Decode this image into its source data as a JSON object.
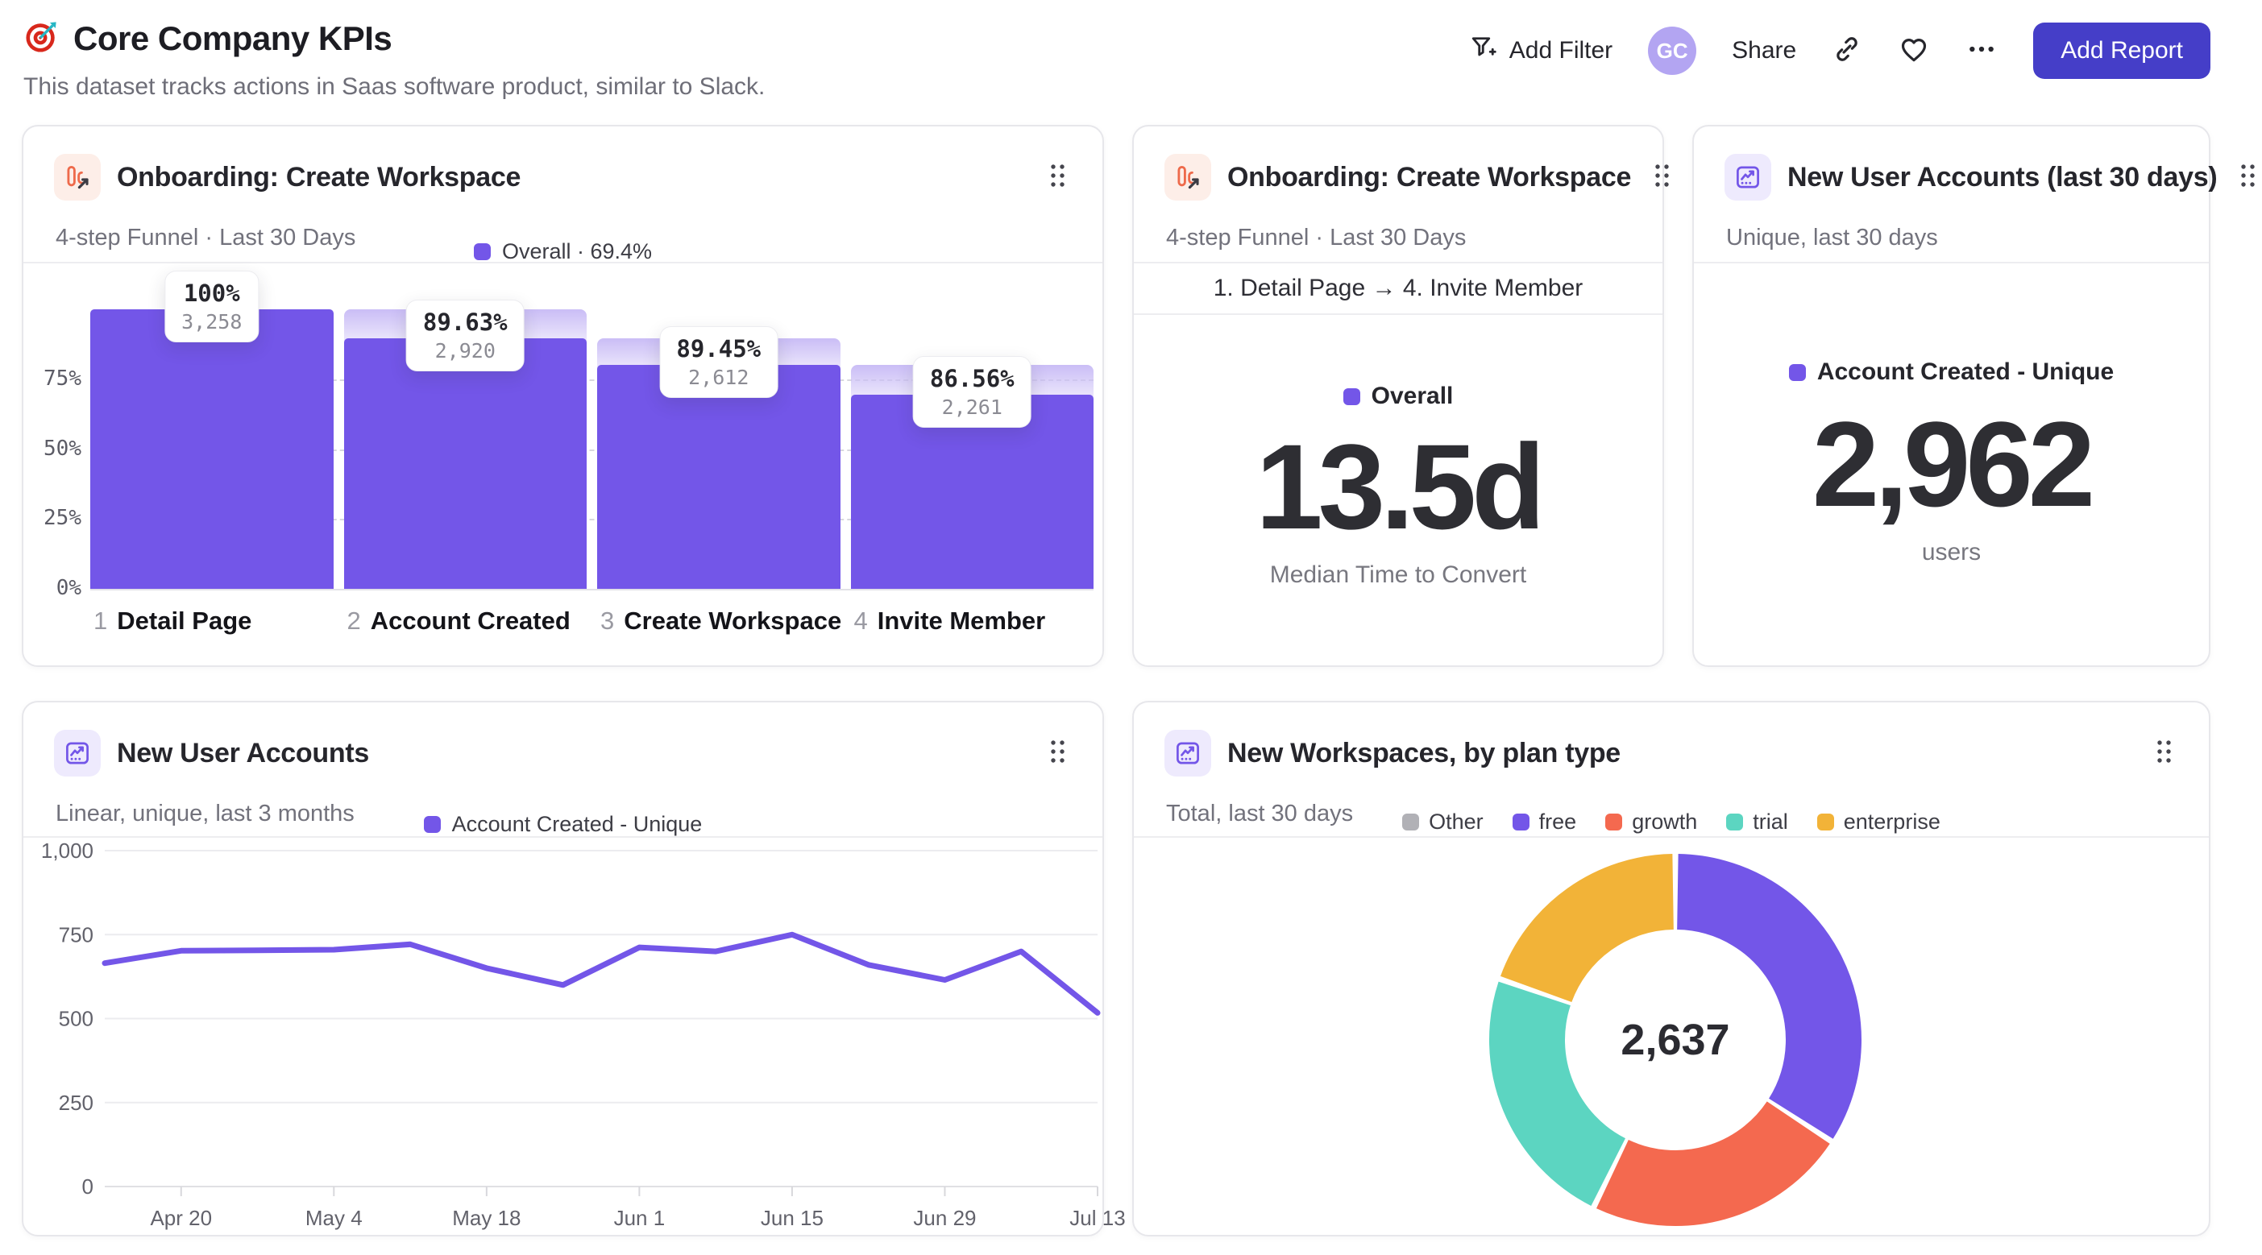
{
  "page": {
    "title": "Core Company KPIs",
    "subtitle": "This dataset tracks actions in Saas software product, similar to Slack."
  },
  "toolbar": {
    "add_filter": "Add Filter",
    "avatar_initials": "GC",
    "share": "Share",
    "add_report": "Add Report"
  },
  "colors": {
    "accent_purple": "#7356e8",
    "button_indigo": "#453ec8",
    "coral": "#f4694f",
    "teal": "#5cd5c1",
    "yellow": "#f2b338",
    "gray": "#b1b1b6",
    "icon_orange": "#ee6a4b"
  },
  "cards": {
    "funnel": {
      "title": "Onboarding: Create Workspace",
      "subtitle": "4-step Funnel · Last 30 Days"
    },
    "median": {
      "title": "Onboarding: Create Workspace",
      "subtitle": "4-step Funnel · Last 30 Days",
      "range_label": "1. Detail Page → 4. Invite Member"
    },
    "users30": {
      "title": "New User Accounts (last 30 days)",
      "subtitle": "Unique, last 30 days"
    },
    "usersLine": {
      "title": "New User Accounts",
      "subtitle": "Linear, unique, last 3 months"
    },
    "donut": {
      "title": "New Workspaces, by plan type",
      "subtitle": "Total, last 30 days"
    }
  },
  "chart_data": [
    {
      "type": "bar",
      "subtype": "funnel",
      "title": "Onboarding: Create Workspace",
      "legend": "Overall · 69.4%",
      "y_ticks": [
        "0%",
        "25%",
        "50%",
        "75%"
      ],
      "ylim": [
        0,
        100
      ],
      "max": 3258,
      "steps": [
        {
          "n": "1",
          "label": "Detail Page",
          "pct": "100%",
          "value": 3258,
          "value_text": "3,258"
        },
        {
          "n": "2",
          "label": "Account Created",
          "pct": "89.63%",
          "value": 2920,
          "value_text": "2,920"
        },
        {
          "n": "3",
          "label": "Create Workspace",
          "pct": "89.45%",
          "value": 2612,
          "value_text": "2,612"
        },
        {
          "n": "4",
          "label": "Invite Member",
          "pct": "86.56%",
          "value": 2261,
          "value_text": "2,261"
        }
      ]
    },
    {
      "type": "big-number",
      "legend": "Overall",
      "value": "13.5d",
      "label": "Median Time to Convert"
    },
    {
      "type": "big-number",
      "legend": "Account Created - Unique",
      "value": "2,962",
      "label": "users"
    },
    {
      "type": "line",
      "legend": "Account Created - Unique",
      "x": [
        "Apr 13",
        "Apr 20",
        "Apr 27",
        "May 4",
        "May 11",
        "May 18",
        "May 25",
        "Jun 1",
        "Jun 8",
        "Jun 15",
        "Jun 22",
        "Jun 29",
        "Jul 6",
        "Jul 13"
      ],
      "values": [
        665,
        702,
        703,
        705,
        721,
        650,
        600,
        712,
        700,
        750,
        660,
        615,
        700,
        517
      ],
      "xtick_labels": [
        "Apr 20",
        "May 4",
        "May 18",
        "Jun 1",
        "Jun 15",
        "Jun 29",
        "Jul 13"
      ],
      "ytick_values": [
        0,
        250,
        500,
        750,
        1000
      ],
      "ytick_labels": [
        "0",
        "250",
        "500",
        "750",
        "1,000"
      ],
      "ylim": [
        0,
        1000
      ],
      "line_color": "#7356e8"
    },
    {
      "type": "pie",
      "subtype": "donut",
      "center_total": "2,637",
      "segments": [
        {
          "label": "Other",
          "value": 0,
          "color": "#b1b1b6"
        },
        {
          "label": "free",
          "value": 901,
          "color": "#7356e8"
        },
        {
          "label": "growth",
          "value": 608,
          "color": "#f4694f"
        },
        {
          "label": "trial",
          "value": 609,
          "color": "#5cd5c1"
        },
        {
          "label": "enterprise",
          "value": 519,
          "color": "#f2b338"
        }
      ]
    }
  ]
}
